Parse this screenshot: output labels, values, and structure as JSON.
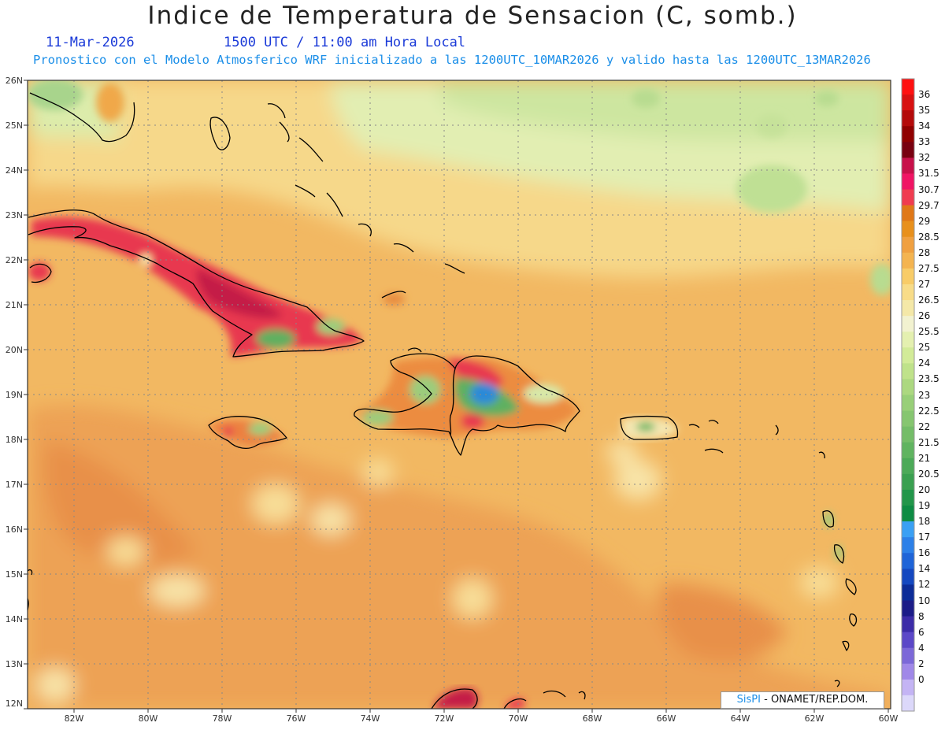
{
  "header": {
    "title": "Indice de Temperatura de Sensacion (C, somb.)",
    "date": "11-Mar-2026",
    "time": "1500 UTC / 11:00 am Hora Local",
    "description": "Pronostico con el Modelo Atmosferico WRF inicializado a las 1200UTC_10MAR2026 y valido hasta las  1200UTC_13MAR2026"
  },
  "axes": {
    "lat_labels": [
      "26N",
      "25N",
      "24N",
      "23N",
      "22N",
      "21N",
      "20N",
      "19N",
      "18N",
      "17N",
      "16N",
      "15N",
      "14N",
      "13N",
      "12N"
    ],
    "lat_values": [
      26,
      25,
      24,
      23,
      22,
      21,
      20,
      19,
      18,
      17,
      16,
      15,
      14,
      13,
      12
    ],
    "lon_labels": [
      "82W",
      "80W",
      "78W",
      "76W",
      "74W",
      "72W",
      "70W",
      "68W",
      "66W",
      "64W",
      "62W",
      "60W"
    ],
    "lon_values": [
      -82,
      -80,
      -78,
      -76,
      -74,
      -72,
      -70,
      -68,
      -66,
      -64,
      -62,
      -60
    ]
  },
  "colorbar": {
    "labels": [
      "36",
      "35",
      "34",
      "33",
      "32",
      "31.5",
      "30.7",
      "29.7",
      "29",
      "28.5",
      "28",
      "27.5",
      "27",
      "26.5",
      "26",
      "25.5",
      "25",
      "24",
      "23.5",
      "23",
      "22.5",
      "22",
      "21.5",
      "21",
      "20.5",
      "20",
      "19",
      "18",
      "17",
      "16",
      "14",
      "12",
      "10",
      "8",
      "6",
      "4",
      "2",
      "0"
    ],
    "colors": [
      "#ff1010",
      "#d81010",
      "#b40a0a",
      "#900000",
      "#780010",
      "#c8104a",
      "#f01464",
      "#f03c50",
      "#e07818",
      "#e8901c",
      "#f0a040",
      "#f4b450",
      "#f8cc68",
      "#f8dc88",
      "#f4e8a8",
      "#f2f2d0",
      "#e4f0b0",
      "#d2eb98",
      "#bfe28a",
      "#acd880",
      "#98cf78",
      "#86c670",
      "#74bd68",
      "#60b460",
      "#4caa58",
      "#3aa050",
      "#22964a",
      "#0e8c44",
      "#3aa0f4",
      "#2c80e8",
      "#1e64d8",
      "#1448c0",
      "#0c2c98",
      "#1c1c88",
      "#3c2ca8",
      "#5c48c8",
      "#7c68d8",
      "#a088e8",
      "#c4b4f4",
      "#dcd8fa"
    ]
  },
  "credit": {
    "brand": "SisPI",
    "org": " - ONAMET/REP.DOM."
  },
  "colors": {
    "ocean_base": "#f0b460",
    "land_hot": "#e8304e",
    "outline": "#000000",
    "grid": "#888888"
  }
}
